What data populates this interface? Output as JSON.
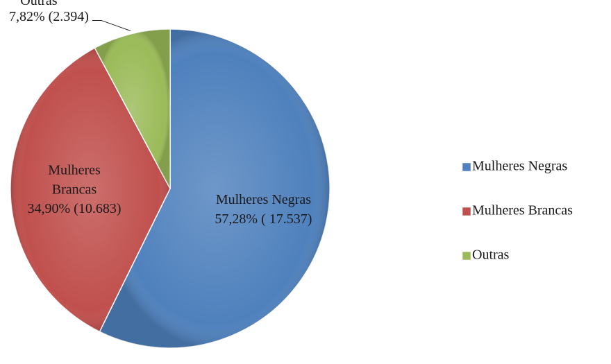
{
  "chart_data": {
    "type": "pie",
    "categories": [
      "Mulheres Negras",
      "Mulheres Brancas",
      "Outras"
    ],
    "values": [
      57.28,
      34.9,
      7.82
    ],
    "value_labels": [
      "57,28% ( 17.537)",
      "34,90% (10.683)",
      "7,82% (2.394)"
    ],
    "colors": [
      "#4f81bd",
      "#c0504d",
      "#9bbb59"
    ],
    "legend": "right"
  }
}
